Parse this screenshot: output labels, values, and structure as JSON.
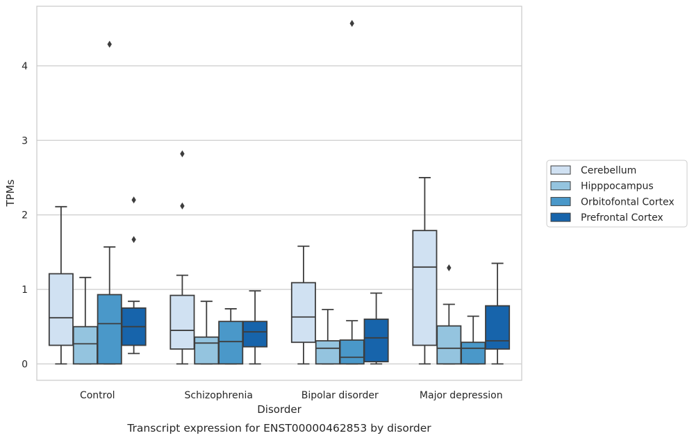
{
  "chart_data": {
    "type": "box",
    "caption": "Transcript expression for ENST00000462853 by disorder",
    "xlabel": "Disorder",
    "ylabel": "TPMs",
    "ylim": [
      -0.22,
      4.8
    ],
    "yticks": [
      0,
      1,
      2,
      3,
      4
    ],
    "grid": "horizontal",
    "legend_position": "right",
    "categories": [
      "Control",
      "Schizophrenia",
      "Bipolar disorder",
      "Major depression"
    ],
    "series": [
      {
        "name": "Cerebellum",
        "color": "#d0e1f2",
        "boxes": [
          {
            "whislo": 0,
            "q1": 0.25,
            "med": 0.62,
            "q3": 1.21,
            "whishi": 2.11,
            "fliers": []
          },
          {
            "whislo": 0,
            "q1": 0.2,
            "med": 0.45,
            "q3": 0.92,
            "whishi": 1.19,
            "fliers": [
              2.12,
              2.82
            ]
          },
          {
            "whislo": 0,
            "q1": 0.29,
            "med": 0.63,
            "q3": 1.09,
            "whishi": 1.58,
            "fliers": []
          },
          {
            "whislo": 0,
            "q1": 0.25,
            "med": 1.3,
            "q3": 1.79,
            "whishi": 2.5,
            "fliers": []
          }
        ]
      },
      {
        "name": "Hipppocampus",
        "color": "#94c4df",
        "boxes": [
          {
            "whislo": 0,
            "q1": 0,
            "med": 0.27,
            "q3": 0.5,
            "whishi": 1.16,
            "fliers": []
          },
          {
            "whislo": 0,
            "q1": 0,
            "med": 0.28,
            "q3": 0.36,
            "whishi": 0.84,
            "fliers": []
          },
          {
            "whislo": 0,
            "q1": 0,
            "med": 0.21,
            "q3": 0.31,
            "whishi": 0.73,
            "fliers": []
          },
          {
            "whislo": 0,
            "q1": 0,
            "med": 0.21,
            "q3": 0.51,
            "whishi": 0.8,
            "fliers": [
              1.29
            ]
          }
        ]
      },
      {
        "name": "Orbitofontal Cortex",
        "color": "#4a98c9",
        "boxes": [
          {
            "whislo": 0,
            "q1": 0,
            "med": 0.54,
            "q3": 0.93,
            "whishi": 1.57,
            "fliers": [
              4.29
            ]
          },
          {
            "whislo": 0,
            "q1": 0,
            "med": 0.3,
            "q3": 0.57,
            "whishi": 0.74,
            "fliers": []
          },
          {
            "whislo": 0,
            "q1": 0,
            "med": 0.09,
            "q3": 0.32,
            "whishi": 0.58,
            "fliers": [
              4.57
            ]
          },
          {
            "whislo": 0,
            "q1": 0,
            "med": 0.21,
            "q3": 0.29,
            "whishi": 0.64,
            "fliers": []
          }
        ]
      },
      {
        "name": "Prefrontal Cortex",
        "color": "#1764ab",
        "boxes": [
          {
            "whislo": 0.14,
            "q1": 0.25,
            "med": 0.5,
            "q3": 0.75,
            "whishi": 0.84,
            "fliers": [
              1.67,
              2.2
            ]
          },
          {
            "whislo": 0,
            "q1": 0.23,
            "med": 0.43,
            "q3": 0.57,
            "whishi": 0.98,
            "fliers": []
          },
          {
            "whislo": 0,
            "q1": 0.03,
            "med": 0.35,
            "q3": 0.6,
            "whishi": 0.95,
            "fliers": []
          },
          {
            "whislo": 0,
            "q1": 0.2,
            "med": 0.31,
            "q3": 0.78,
            "whishi": 1.35,
            "fliers": []
          }
        ]
      }
    ]
  }
}
